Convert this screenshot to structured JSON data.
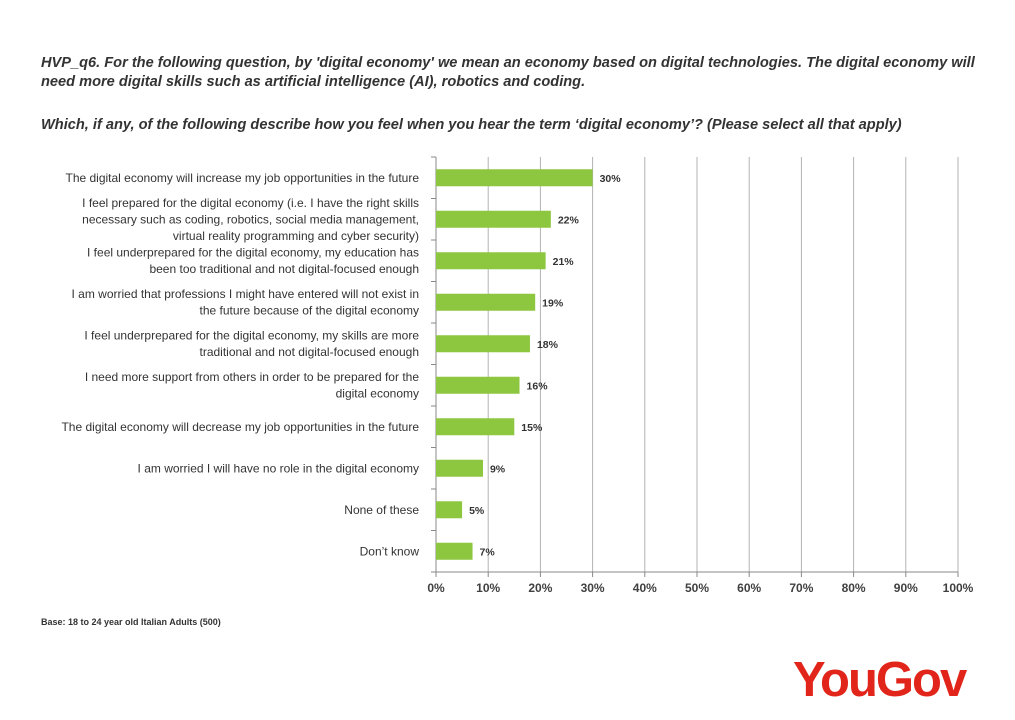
{
  "question": {
    "line1": "HVP_q6. For the following question, by 'digital economy' we mean an economy based on digital technologies. The digital economy will need more digital skills such as artificial intelligence (AI), robotics and coding.",
    "line2": "Which, if any, of the following describe how you feel when you hear the term ‘digital economy’? (Please select all that apply)"
  },
  "base_note": "Base: 18 to 24 year old Italian Adults (500)",
  "brand": {
    "name": "YouGov",
    "color": "#e1251b"
  },
  "chart_data": {
    "type": "bar",
    "orientation": "horizontal",
    "categories": [
      [
        "The digital economy will increase my job opportunities in the future"
      ],
      [
        "I feel prepared for the digital economy (i.e. I have the right skills",
        "necessary such as coding, robotics, social media management,",
        "virtual reality programming and cyber security)"
      ],
      [
        "I feel underprepared for the digital economy, my education has",
        "been too traditional and not digital-focused enough"
      ],
      [
        "I am worried that professions I might have entered will not exist in",
        "the future because of the digital economy"
      ],
      [
        "I feel underprepared for the digital economy, my skills are more",
        "traditional and not digital-focused enough"
      ],
      [
        "I need more support from others in order to be prepared for the",
        "digital economy"
      ],
      [
        "The digital economy will decrease my job opportunities in the future"
      ],
      [
        "I am worried I will have no role in the digital economy"
      ],
      [
        "None of these"
      ],
      [
        "Don’t know"
      ]
    ],
    "values": [
      30,
      22,
      21,
      19,
      18,
      16,
      15,
      9,
      5,
      7
    ],
    "value_labels": [
      "30%",
      "22%",
      "21%",
      "19%",
      "18%",
      "16%",
      "15%",
      "9%",
      "5%",
      "7%"
    ],
    "x_ticks": [
      "0%",
      "10%",
      "20%",
      "30%",
      "40%",
      "50%",
      "60%",
      "70%",
      "80%",
      "90%",
      "100%"
    ],
    "xlim": [
      0,
      100
    ],
    "grid": true,
    "bar_color": "#8dc63f"
  }
}
